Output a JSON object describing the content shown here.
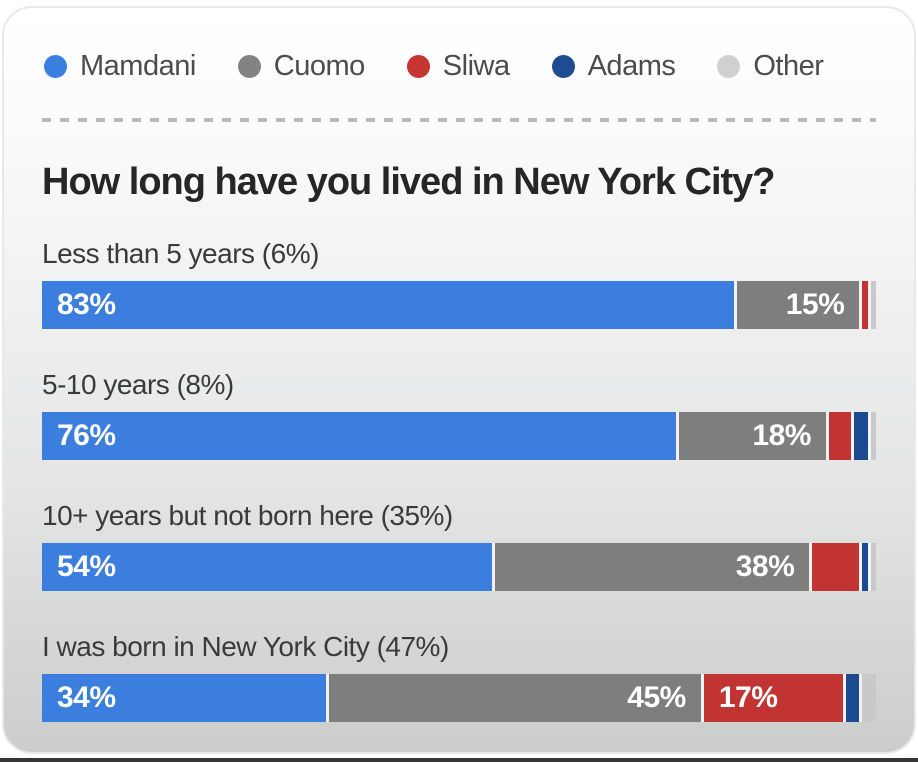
{
  "title": "How long have you lived in New York City?",
  "legend": {
    "items": [
      {
        "label": "Mamdani",
        "color": "#3b80e0"
      },
      {
        "label": "Cuomo",
        "color": "#838383"
      },
      {
        "label": "Sliwa",
        "color": "#c73532"
      },
      {
        "label": "Adams",
        "color": "#1d4c92"
      },
      {
        "label": "Other",
        "color": "#d0d0d0"
      }
    ]
  },
  "chart_data": {
    "type": "bar",
    "orientation": "horizontal-stacked",
    "title": "How long have you lived in New York City?",
    "categories": [
      "Less than 5 years (6%)",
      "5-10 years (8%)",
      "10+ years but not born here (35%)",
      "I was born in New York City (47%)"
    ],
    "series": [
      {
        "name": "Mamdani",
        "color": "#3b7edd",
        "label_align": "left",
        "values": [
          83,
          76,
          54,
          34
        ]
      },
      {
        "name": "Cuomo",
        "color": "#7e7e7e",
        "label_align": "right",
        "values": [
          15,
          18,
          38,
          45
        ]
      },
      {
        "name": "Sliwa",
        "color": "#c23431",
        "label_align": "left",
        "values": [
          1,
          3,
          6,
          17
        ]
      },
      {
        "name": "Adams",
        "color": "#1d4b8f",
        "label_align": "left",
        "values": [
          0,
          2,
          1,
          2
        ]
      },
      {
        "name": "Other",
        "color": "#c9c9c9",
        "label_align": "left",
        "values": [
          1,
          1,
          1,
          2
        ]
      }
    ],
    "value_suffix": "%",
    "label_threshold": 10,
    "xlim": [
      0,
      100
    ],
    "legend_position": "top",
    "grid": false
  }
}
